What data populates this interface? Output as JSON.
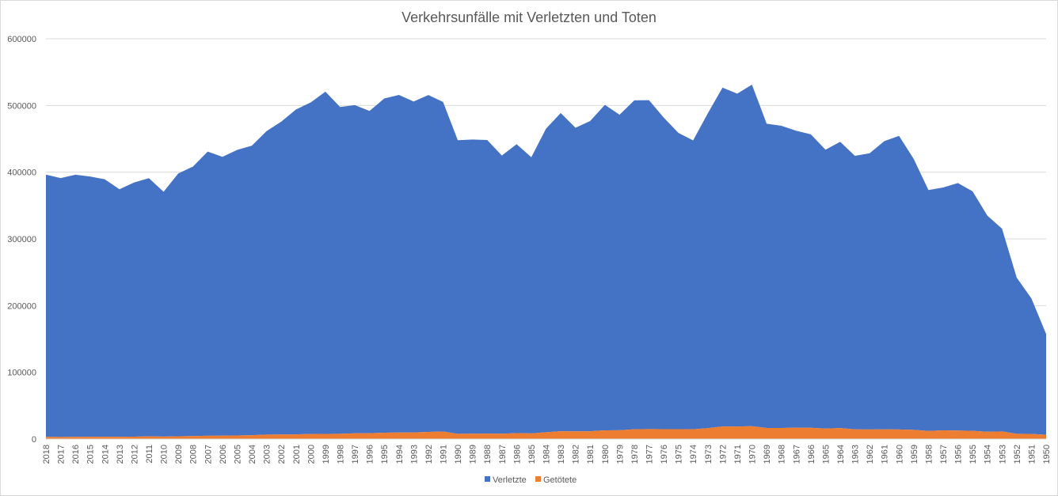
{
  "chart_data": {
    "type": "area",
    "title": "Verkehrsunfälle mit Verletzten und Toten",
    "xlabel": "",
    "ylabel": "",
    "ylim": [
      0,
      600000
    ],
    "yticks": [
      0,
      100000,
      200000,
      300000,
      400000,
      500000,
      600000
    ],
    "ytick_labels": [
      "0",
      "100000",
      "200000",
      "300000",
      "400000",
      "500000",
      "600000"
    ],
    "grid": true,
    "legend_position": "bottom",
    "stacked": true,
    "categories": [
      "2018",
      "2017",
      "2016",
      "2015",
      "2014",
      "2013",
      "2012",
      "2011",
      "2010",
      "2009",
      "2008",
      "2007",
      "2006",
      "2005",
      "2004",
      "2003",
      "2002",
      "2001",
      "2000",
      "1999",
      "1998",
      "1997",
      "1996",
      "1995",
      "1994",
      "1993",
      "1992",
      "1991",
      "1990",
      "1989",
      "1988",
      "1987",
      "1986",
      "1985",
      "1984",
      "1983",
      "1982",
      "1981",
      "1980",
      "1979",
      "1978",
      "1977",
      "1976",
      "1975",
      "1974",
      "1973",
      "1972",
      "1971",
      "1970",
      "1969",
      "1968",
      "1967",
      "1966",
      "1965",
      "1964",
      "1963",
      "1962",
      "1961",
      "1960",
      "1959",
      "1958",
      "1957",
      "1956",
      "1955",
      "1954",
      "1953",
      "1952",
      "1951",
      "1950"
    ],
    "series": [
      {
        "name": "Getötete",
        "color": "#ed7d31",
        "values": [
          3275,
          3180,
          3206,
          3459,
          3377,
          3339,
          3600,
          4009,
          3648,
          4152,
          4477,
          4949,
          5091,
          5361,
          5842,
          6613,
          6842,
          7000,
          7503,
          7772,
          7792,
          8549,
          8758,
          9454,
          9814,
          9949,
          10631,
          11300,
          7906,
          7995,
          8213,
          7967,
          8948,
          8400,
          10199,
          11732,
          11608,
          11674,
          13041,
          13222,
          14662,
          14978,
          14820,
          14870,
          14614,
          16302,
          18811,
          18753,
          19193,
          16646,
          16636,
          17084,
          16868,
          15753,
          16494,
          14513,
          14406,
          14543,
          14406,
          13822,
          12169,
          13004,
          12791,
          12296,
          11025,
          11449,
          7903,
          7722,
          6428
        ]
      },
      {
        "name": "Verletzte",
        "color": "#4472c4",
        "values": [
          393000,
          388000,
          393000,
          390000,
          386000,
          371000,
          381000,
          387000,
          367000,
          394000,
          404000,
          426000,
          418000,
          428000,
          434000,
          455000,
          469000,
          487000,
          497000,
          513000,
          490000,
          492000,
          483000,
          501000,
          506000,
          496000,
          505000,
          494000,
          440000,
          441000,
          440000,
          417000,
          433000,
          414000,
          455000,
          477000,
          455000,
          465000,
          488000,
          473000,
          493000,
          493000,
          467000,
          444000,
          433000,
          472000,
          508000,
          499000,
          512000,
          456000,
          453000,
          445000,
          440000,
          418000,
          429000,
          410000,
          414000,
          432000,
          440000,
          406000,
          361000,
          364000,
          371000,
          359000,
          324000,
          304000,
          234000,
          203000,
          151000
        ]
      }
    ]
  }
}
